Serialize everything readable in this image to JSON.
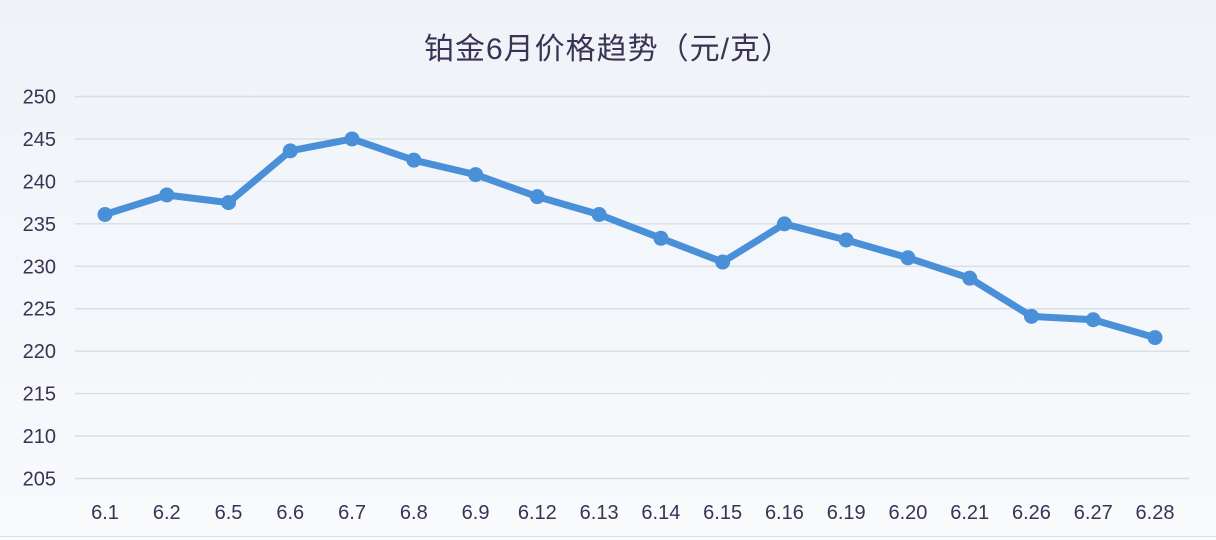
{
  "page": {
    "background_top": "#eff3f8",
    "background_bottom": "#f8fafc"
  },
  "chart_data": {
    "type": "line",
    "title": "铂金6月价格趋势（元/克）",
    "categories": [
      "6.1",
      "6.2",
      "6.5",
      "6.6",
      "6.7",
      "6.8",
      "6.9",
      "6.12",
      "6.13",
      "6.14",
      "6.15",
      "6.16",
      "6.19",
      "6.20",
      "6.21",
      "6.26",
      "6.27",
      "6.28"
    ],
    "values": [
      236.1,
      238.4,
      237.5,
      243.6,
      245.0,
      242.5,
      240.8,
      238.2,
      236.1,
      233.3,
      230.5,
      235.0,
      233.1,
      231.0,
      228.6,
      224.1,
      223.7,
      221.6
    ],
    "xlabel": "",
    "ylabel": "",
    "ylim": [
      205,
      250
    ],
    "ytick_step": 5,
    "yticks": [
      "250",
      "245",
      "240",
      "235",
      "230",
      "225",
      "220",
      "215",
      "210",
      "205"
    ],
    "grid": "horizontal",
    "legend": "none",
    "line_color": "#4a90d8",
    "marker_color": "#4a90d8",
    "grid_color": "#d9dee4",
    "text_color": "#3b3254"
  }
}
